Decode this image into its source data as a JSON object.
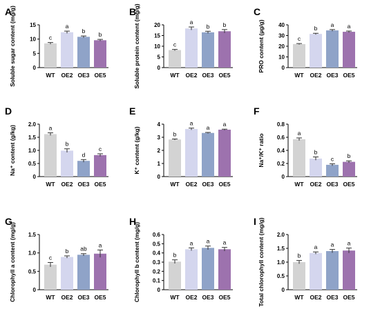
{
  "colors": {
    "WT": "#d3d3d3",
    "OE2": "#d4d6ee",
    "OE3": "#8fa3c8",
    "OE5": "#9d72ae",
    "axis": "#000000"
  },
  "chart_data": [
    {
      "panel": "A",
      "type": "bar",
      "categories": [
        "WT",
        "OE2",
        "OE3",
        "OE5"
      ],
      "values": [
        8.5,
        12.4,
        10.8,
        9.6
      ],
      "errors": [
        0.3,
        0.4,
        0.3,
        0.3
      ],
      "letters": [
        "c",
        "a",
        "b",
        "b"
      ],
      "ylabel": "Soluble sugar content (mg/g)",
      "ylim": [
        0,
        15
      ],
      "yticks": [
        0,
        5,
        10,
        15
      ]
    },
    {
      "panel": "B",
      "type": "bar",
      "categories": [
        "WT",
        "OE2",
        "OE3",
        "OE5"
      ],
      "values": [
        8.2,
        18.3,
        16.5,
        17.0
      ],
      "errors": [
        0.3,
        0.7,
        0.5,
        0.8
      ],
      "letters": [
        "c",
        "a",
        "b",
        "b"
      ],
      "ylabel": "Soluble protein content (mg/g)",
      "ylim": [
        0,
        20
      ],
      "yticks": [
        0,
        5,
        10,
        15,
        20
      ]
    },
    {
      "panel": "C",
      "type": "bar",
      "categories": [
        "WT",
        "OE2",
        "OE3",
        "OE5"
      ],
      "values": [
        22.0,
        31.5,
        34.8,
        33.5
      ],
      "errors": [
        0.5,
        0.6,
        0.8,
        0.7
      ],
      "letters": [
        "c",
        "b",
        "a",
        "a"
      ],
      "ylabel": "PRO content (µg/g)",
      "ylim": [
        0,
        40
      ],
      "yticks": [
        0,
        10,
        20,
        30,
        40
      ]
    },
    {
      "panel": "D",
      "type": "bar",
      "categories": [
        "WT",
        "OE2",
        "OE3",
        "OE5"
      ],
      "values": [
        1.62,
        0.99,
        0.6,
        0.82
      ],
      "errors": [
        0.05,
        0.07,
        0.05,
        0.05
      ],
      "letters": [
        "a",
        "b",
        "d",
        "c"
      ],
      "ylabel": "Na⁺ content (g/kg)",
      "ylim": [
        0,
        2.0
      ],
      "yticks": [
        0,
        0.5,
        1.0,
        1.5,
        2.0
      ]
    },
    {
      "panel": "E",
      "type": "bar",
      "categories": [
        "WT",
        "OE2",
        "OE3",
        "OE5"
      ],
      "values": [
        2.83,
        3.63,
        3.33,
        3.58
      ],
      "errors": [
        0.04,
        0.07,
        0.04,
        0.04
      ],
      "letters": [
        "b",
        "a",
        "a",
        "a"
      ],
      "ylabel": "K⁺ content (g/kg)",
      "ylim": [
        0,
        4
      ],
      "yticks": [
        0,
        1,
        2,
        3,
        4
      ]
    },
    {
      "panel": "F",
      "type": "bar",
      "categories": [
        "WT",
        "OE2",
        "OE3",
        "OE5"
      ],
      "values": [
        0.57,
        0.275,
        0.18,
        0.225
      ],
      "errors": [
        0.02,
        0.025,
        0.015,
        0.015
      ],
      "letters": [
        "a",
        "b",
        "c",
        "b"
      ],
      "ylabel": "Na⁺/K⁺ ratio",
      "ylim": [
        0,
        0.8
      ],
      "yticks": [
        0,
        0.2,
        0.4,
        0.6,
        0.8
      ]
    },
    {
      "panel": "G",
      "type": "bar",
      "categories": [
        "WT",
        "OE2",
        "OE3",
        "OE5"
      ],
      "values": [
        0.68,
        0.89,
        0.95,
        0.98
      ],
      "errors": [
        0.06,
        0.03,
        0.03,
        0.1
      ],
      "letters": [
        "c",
        "b",
        "ab",
        "a"
      ],
      "ylabel": "Chlorophyll a content (mg/g)",
      "ylim": [
        0,
        1.5
      ],
      "yticks": [
        0,
        0.5,
        1.0,
        1.5
      ]
    },
    {
      "panel": "H",
      "type": "bar",
      "categories": [
        "WT",
        "OE2",
        "OE3",
        "OE5"
      ],
      "values": [
        0.305,
        0.44,
        0.455,
        0.44
      ],
      "errors": [
        0.02,
        0.015,
        0.02,
        0.02
      ],
      "letters": [
        "b",
        "a",
        "a",
        "a"
      ],
      "ylabel": "Chlorophyll b content (mg/g)",
      "ylim": [
        0,
        0.6
      ],
      "yticks": [
        0,
        0.1,
        0.2,
        0.3,
        0.4,
        0.5,
        0.6
      ]
    },
    {
      "panel": "I",
      "type": "bar",
      "categories": [
        "WT",
        "OE2",
        "OE3",
        "OE5"
      ],
      "values": [
        1.0,
        1.33,
        1.4,
        1.42
      ],
      "errors": [
        0.06,
        0.04,
        0.06,
        0.09
      ],
      "letters": [
        "b",
        "a",
        "a",
        "a"
      ],
      "ylabel": "Total chlorophyll content (mg/g)",
      "ylim": [
        0,
        2.0
      ],
      "yticks": [
        0,
        0.5,
        1.0,
        1.5,
        2.0
      ]
    }
  ]
}
